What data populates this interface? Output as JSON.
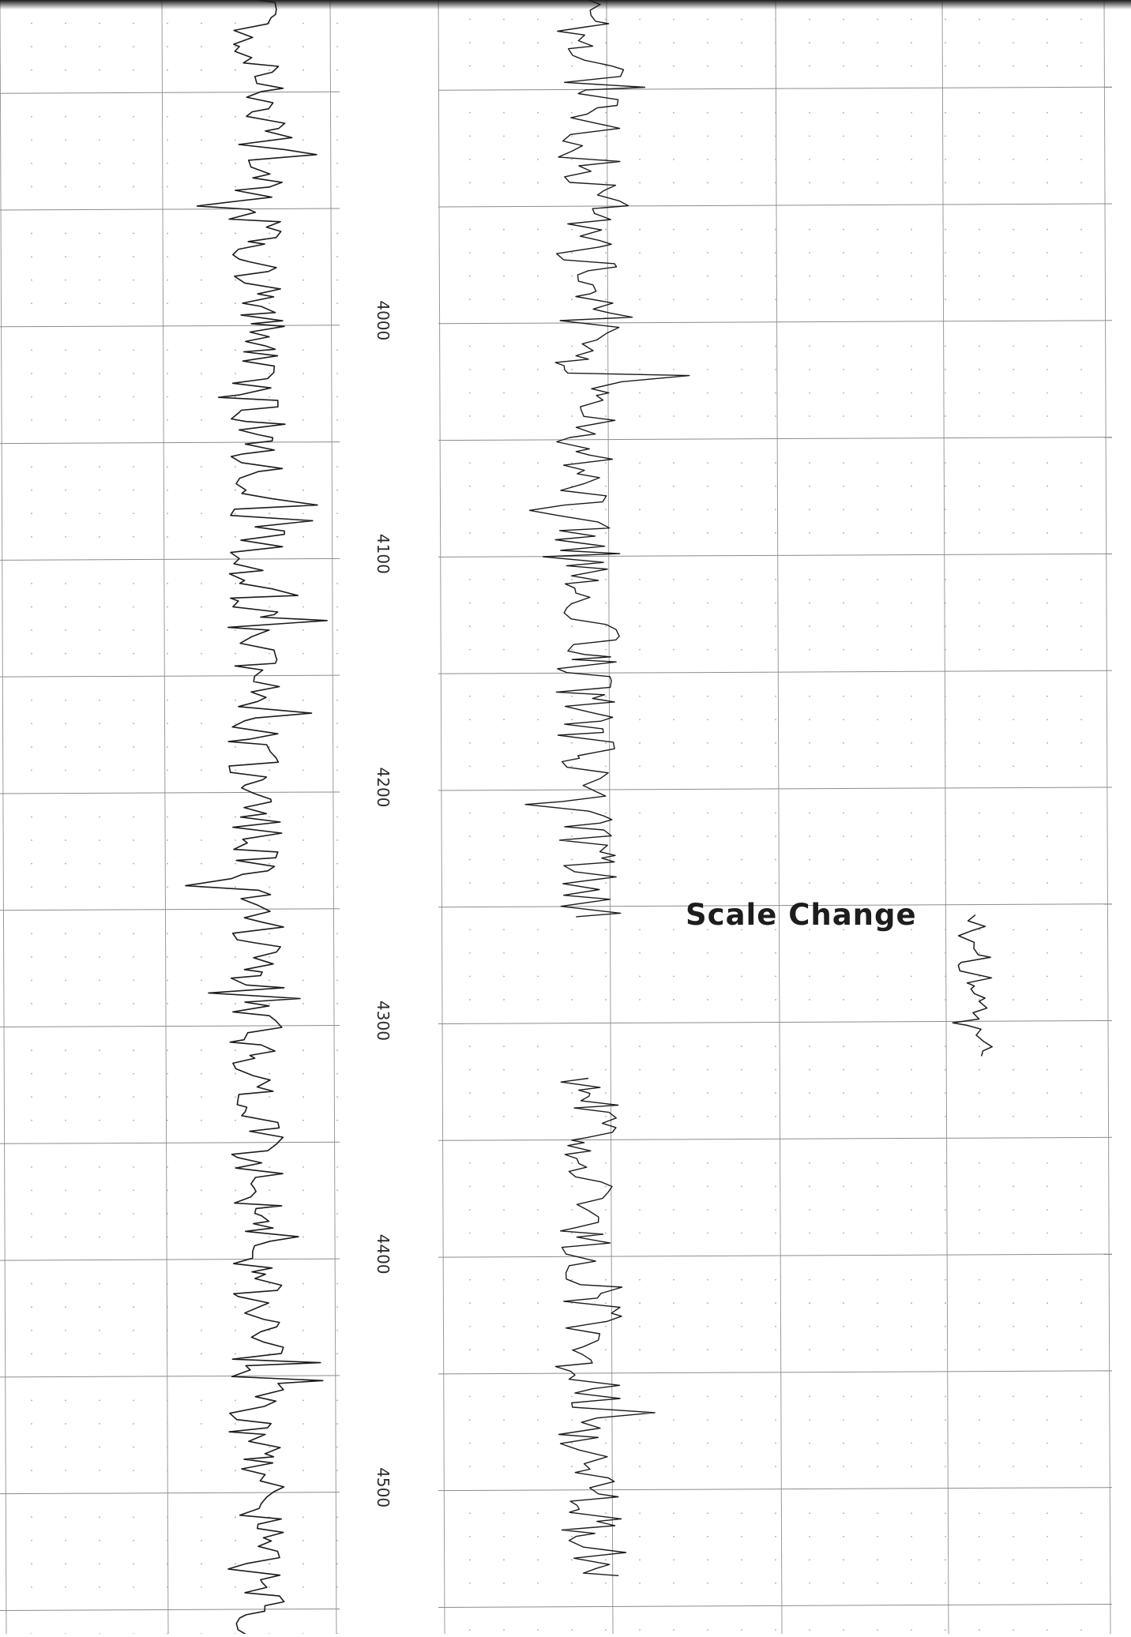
{
  "chart_data": {
    "type": "line",
    "title": "",
    "xlabel": "",
    "ylabel": "",
    "depth_labels": [
      "4000",
      "4100",
      "4200",
      "4300",
      "4400",
      "4500"
    ],
    "depth_values": [
      4000,
      4100,
      4200,
      4300,
      4400,
      4500
    ],
    "annotations": [
      {
        "text": "Scale Change",
        "depth": 4263
      }
    ],
    "ylim": [
      3860,
      4560
    ],
    "grid": true,
    "series": [
      {
        "track": "left",
        "segments": [
          {
            "from": 3860,
            "to": 4560
          }
        ]
      },
      {
        "track": "right",
        "segments": [
          {
            "from": 3860,
            "to": 4252
          },
          {
            "from": 4322,
            "to": 4535
          }
        ]
      },
      {
        "track": "right-after-scale-change",
        "segments": [
          {
            "from": 4252,
            "to": 4312
          }
        ]
      }
    ]
  }
}
